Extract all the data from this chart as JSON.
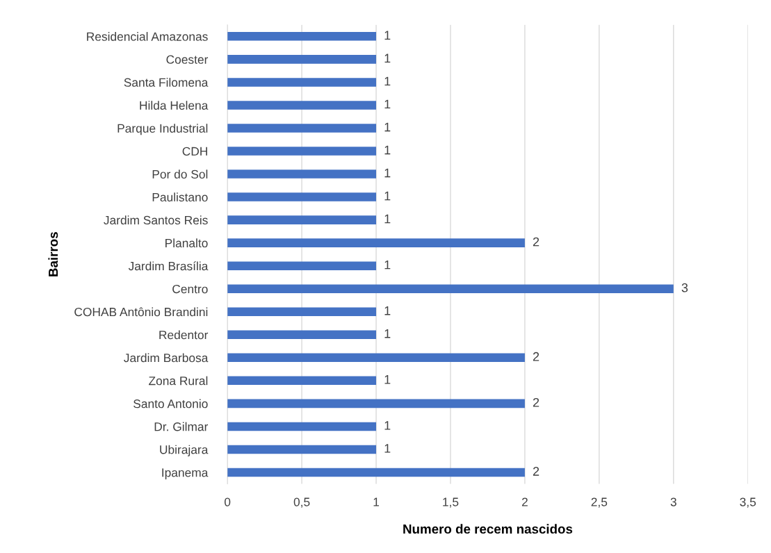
{
  "chart_data": {
    "type": "bar",
    "orientation": "horizontal",
    "xlabel": "Numero de recem nascidos",
    "ylabel": "Bairros",
    "categories": [
      "Residencial Amazonas",
      "Coester",
      "Santa Filomena",
      "Hilda Helena",
      "Parque Industrial",
      "CDH",
      "Por do Sol",
      "Paulistano",
      "Jardim Santos Reis",
      "Planalto",
      "Jardim Brasília",
      "Centro",
      "COHAB Antônio Brandini",
      "Redentor",
      "Jardim Barbosa",
      "Zona Rural",
      "Santo Antonio",
      "Dr. Gilmar",
      "Ubirajara",
      "Ipanema"
    ],
    "values": [
      1,
      1,
      1,
      1,
      1,
      1,
      1,
      1,
      1,
      2,
      1,
      3,
      1,
      1,
      2,
      1,
      2,
      1,
      1,
      2
    ],
    "color": "#4472c4",
    "data_labels": true,
    "grid": "x",
    "legend": false,
    "xlim": [
      0,
      3.5
    ],
    "xticks": [
      0,
      {
        "value": 0.5,
        "label": "0,5"
      },
      1,
      {
        "value": 1.5,
        "label": "1,5"
      },
      2,
      {
        "value": 2.5,
        "label": "2,5"
      },
      3,
      {
        "value": 3.5,
        "label": "3,5"
      }
    ]
  }
}
